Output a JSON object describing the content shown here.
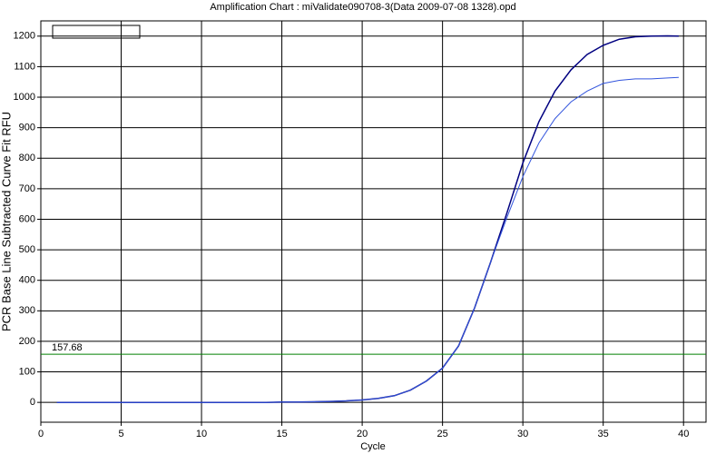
{
  "chart_data": {
    "type": "line",
    "title": "Amplification Chart : miValidate090708-3(Data 2009-07-08 1328).opd",
    "x_label": "Cycle",
    "y_label": "PCR Base Line Subtracted Curve Fit RFU",
    "xlim": [
      0,
      41.4
    ],
    "ylim": [
      -65,
      1250
    ],
    "xticks": [
      0,
      5,
      10,
      15,
      20,
      25,
      30,
      35,
      40
    ],
    "yticks": [
      0,
      100,
      200,
      300,
      400,
      500,
      600,
      700,
      800,
      900,
      1000,
      1100,
      1200
    ],
    "grid": true,
    "threshold": 157.68,
    "threshold_color": "#008000",
    "x": [
      1,
      2,
      3,
      4,
      5,
      6,
      7,
      8,
      9,
      10,
      11,
      12,
      13,
      14,
      15,
      16,
      17,
      18,
      19,
      20,
      21,
      22,
      23,
      24,
      25,
      26,
      27,
      28,
      29,
      30,
      31,
      32,
      33,
      34,
      35,
      36,
      37,
      38,
      39,
      39.7
    ],
    "series": [
      {
        "color": "#000080",
        "values": [
          0,
          0,
          0,
          0,
          0,
          0,
          0,
          0,
          0,
          0,
          0,
          0,
          0,
          0,
          1,
          1,
          2,
          3,
          5,
          8,
          13,
          22,
          40,
          70,
          112,
          185,
          310,
          460,
          620,
          785,
          920,
          1020,
          1090,
          1140,
          1170,
          1190,
          1198,
          1200,
          1201,
          1200
        ]
      },
      {
        "color": "#3355dd",
        "values": [
          0,
          0,
          0,
          0,
          0,
          0,
          0,
          0,
          0,
          0,
          0,
          0,
          0,
          0,
          1,
          1,
          2,
          3,
          5,
          8,
          13,
          22,
          40,
          70,
          112,
          185,
          310,
          460,
          605,
          740,
          850,
          930,
          985,
          1020,
          1045,
          1055,
          1060,
          1060,
          1063,
          1065
        ]
      }
    ]
  }
}
